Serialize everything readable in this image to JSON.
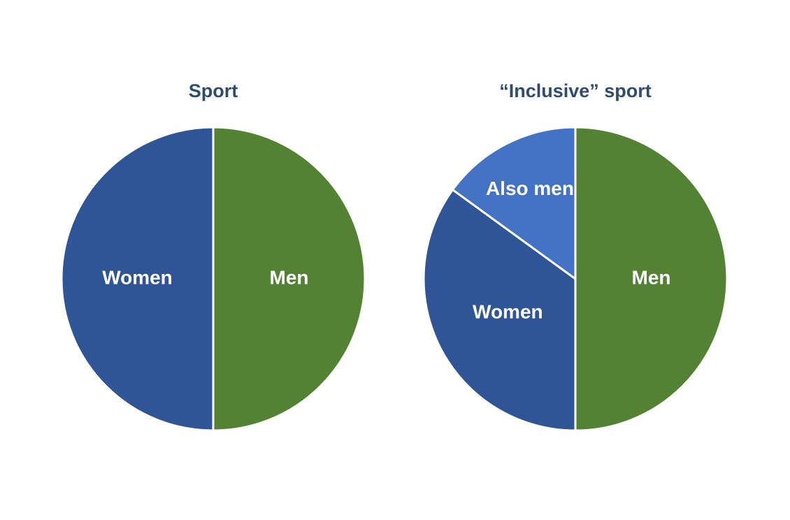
{
  "chart_data": [
    {
      "type": "pie",
      "title": "Sport",
      "categories": [
        "Men",
        "Women"
      ],
      "values": [
        50,
        50
      ],
      "colors": [
        "#548235",
        "#2f5597"
      ]
    },
    {
      "type": "pie",
      "title": "“Inclusive” sport",
      "categories": [
        "Men",
        "Women",
        "Also men"
      ],
      "values": [
        50,
        35,
        15
      ],
      "colors": [
        "#548235",
        "#2f5597",
        "#4472c4"
      ]
    }
  ]
}
